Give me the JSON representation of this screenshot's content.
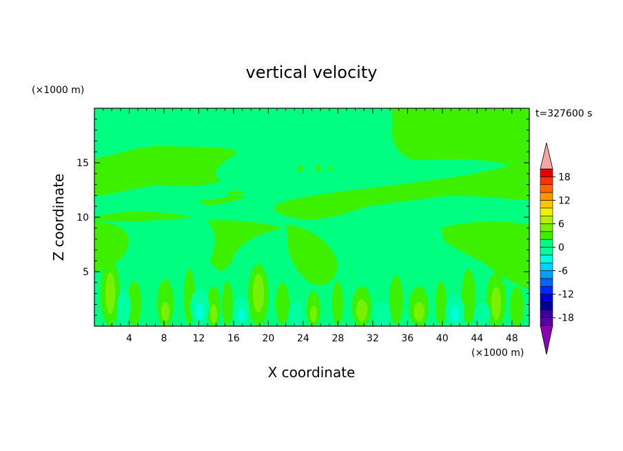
{
  "chart_data": {
    "type": "heatmap",
    "title": "vertical velocity",
    "xlabel": "X coordinate",
    "ylabel": "Z coordinate",
    "x_unit": "(×1000 m)",
    "y_unit": "(×1000 m)",
    "time_label": "t=327600 s",
    "xlim": [
      0,
      50
    ],
    "ylim": [
      0,
      20
    ],
    "x_ticks": [
      4,
      8,
      12,
      16,
      20,
      24,
      28,
      32,
      36,
      40,
      44,
      48
    ],
    "y_ticks": [
      5,
      10,
      15
    ],
    "colorbar": {
      "levels": [
        -20,
        -18,
        -16,
        -14,
        -12,
        -10,
        -8,
        -6,
        -4,
        -2,
        0,
        2,
        4,
        6,
        8,
        10,
        12,
        14,
        16,
        18,
        20
      ],
      "tick_labels": [
        18,
        12,
        6,
        0,
        -6,
        -12,
        -18
      ],
      "colors": [
        "#5a00a0",
        "#3c00a0",
        "#000096",
        "#0000d2",
        "#0028ff",
        "#0064ff",
        "#00a0ff",
        "#00d2ff",
        "#00ffdc",
        "#00ffa0",
        "#00ff80",
        "#3cf000",
        "#78f000",
        "#b4f000",
        "#f0f000",
        "#ffc800",
        "#ff9600",
        "#ff6400",
        "#ff3200",
        "#e60000"
      ],
      "lower_extend_color": "#8c00b4",
      "upper_extend_color": "#f4a6a6"
    },
    "background_level": "0 to 2",
    "background_color": "#00ff80"
  }
}
